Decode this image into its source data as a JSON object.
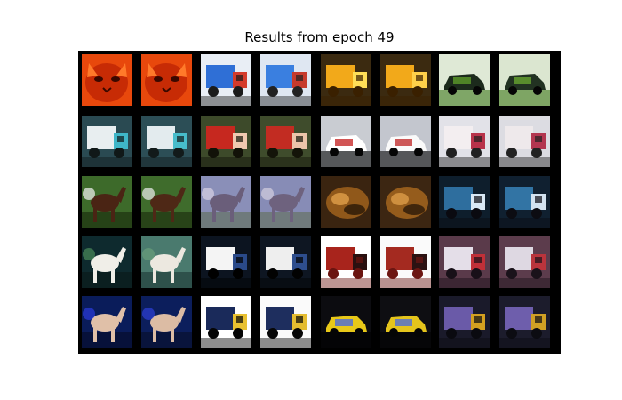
{
  "figure": {
    "title": "Results from epoch 49"
  },
  "grid": {
    "rows": 5,
    "cols": 8,
    "cells": [
      [
        {
          "subject": "cat-face",
          "variant": "original",
          "palette": {
            "bg": "#e8480c",
            "main": "#c72b05",
            "accent": "#ff7a2a",
            "low": "#3a0800"
          }
        },
        {
          "subject": "cat-face",
          "variant": "reconstruction",
          "palette": {
            "bg": "#e8480c",
            "main": "#c72b05",
            "accent": "#ff7a2a",
            "low": "#3a0800"
          }
        },
        {
          "subject": "truck-blue",
          "variant": "original",
          "palette": {
            "bg": "#e9eef5",
            "main": "#2f6fd6",
            "accent": "#d43b2b",
            "low": "#1b1b1b"
          }
        },
        {
          "subject": "truck-blue",
          "variant": "reconstruction",
          "palette": {
            "bg": "#dfe7f2",
            "main": "#3a7fe0",
            "accent": "#c63a2c",
            "low": "#222222"
          }
        },
        {
          "subject": "truck-yellow",
          "variant": "original",
          "palette": {
            "bg": "#3b2a10",
            "main": "#f2a91a",
            "accent": "#ffde57",
            "low": "#3a2000"
          }
        },
        {
          "subject": "truck-yellow",
          "variant": "reconstruction",
          "palette": {
            "bg": "#3b2a10",
            "main": "#f2a91a",
            "accent": "#ffd04a",
            "low": "#3a2000"
          }
        },
        {
          "subject": "car-dark-field",
          "variant": "original",
          "palette": {
            "bg": "#dfe9d6",
            "main": "#1c2a1c",
            "accent": "#5d9a2a",
            "low": "#3f7a1c"
          }
        },
        {
          "subject": "car-dark-field",
          "variant": "reconstruction",
          "palette": {
            "bg": "#dbe6d0",
            "main": "#223222",
            "accent": "#68a431",
            "low": "#3f7a1c"
          }
        }
      ],
      [
        {
          "subject": "truck-white",
          "variant": "original",
          "palette": {
            "bg": "#2a4a52",
            "main": "#e8eef0",
            "accent": "#3fb6c8",
            "low": "#101818"
          }
        },
        {
          "subject": "truck-white",
          "variant": "reconstruction",
          "palette": {
            "bg": "#2c4e56",
            "main": "#e3ebee",
            "accent": "#47bccb",
            "low": "#121a1a"
          }
        },
        {
          "subject": "truck-red",
          "variant": "original",
          "palette": {
            "bg": "#3d4a2a",
            "main": "#c6281f",
            "accent": "#f0c8b0",
            "low": "#121208"
          }
        },
        {
          "subject": "truck-red",
          "variant": "reconstruction",
          "palette": {
            "bg": "#3f4c2c",
            "main": "#c22c22",
            "accent": "#ecc4aa",
            "low": "#141409"
          }
        },
        {
          "subject": "car-white",
          "variant": "original",
          "palette": {
            "bg": "#c9ccd2",
            "main": "#ffffff",
            "accent": "#c72a2a",
            "low": "#0a0a0a"
          }
        },
        {
          "subject": "car-white",
          "variant": "reconstruction",
          "palette": {
            "bg": "#c3c6ce",
            "main": "#fafafa",
            "accent": "#c23030",
            "low": "#0c0c0c"
          }
        },
        {
          "subject": "truck-box-white",
          "variant": "original",
          "palette": {
            "bg": "#e2e2e8",
            "main": "#f3eef0",
            "accent": "#b8324a",
            "low": "#202020"
          }
        },
        {
          "subject": "truck-box-white",
          "variant": "reconstruction",
          "palette": {
            "bg": "#dcdce2",
            "main": "#eee9eb",
            "accent": "#b33650",
            "low": "#222222"
          }
        }
      ],
      [
        {
          "subject": "horse-brown",
          "variant": "original",
          "palette": {
            "bg": "#3d6a2a",
            "main": "#4a2414",
            "accent": "#f2f2f2",
            "low": "#142008"
          }
        },
        {
          "subject": "horse-brown",
          "variant": "reconstruction",
          "palette": {
            "bg": "#3f6c2c",
            "main": "#4e2816",
            "accent": "#eeeeee",
            "low": "#16220a"
          }
        },
        {
          "subject": "deer-field",
          "variant": "original",
          "palette": {
            "bg": "#8a8fb8",
            "main": "#6a5e7a",
            "accent": "#d8d2e4",
            "low": "#5a6a4a"
          }
        },
        {
          "subject": "deer-field",
          "variant": "reconstruction",
          "palette": {
            "bg": "#878cb6",
            "main": "#6e627e",
            "accent": "#d4cee0",
            "low": "#5c6c4c"
          }
        },
        {
          "subject": "blurry-brown",
          "variant": "original",
          "palette": {
            "bg": "#3a2410",
            "main": "#a0621c",
            "accent": "#e0a04a",
            "low": "#1a0e04"
          }
        },
        {
          "subject": "blurry-brown",
          "variant": "reconstruction",
          "palette": {
            "bg": "#3c2612",
            "main": "#a4661e",
            "accent": "#dc9c48",
            "low": "#1c1006"
          }
        },
        {
          "subject": "truck-dark-blue",
          "variant": "original",
          "palette": {
            "bg": "#0e1e2c",
            "main": "#2e6e9e",
            "accent": "#d8e8f4",
            "low": "#0a0a10"
          }
        },
        {
          "subject": "truck-dark-blue",
          "variant": "reconstruction",
          "palette": {
            "bg": "#102030",
            "main": "#3274a4",
            "accent": "#d2e2f0",
            "low": "#0c0c12"
          }
        }
      ],
      [
        {
          "subject": "horse-white",
          "variant": "original",
          "palette": {
            "bg": "#0e2a2e",
            "main": "#f0eee8",
            "accent": "#4a8a5a",
            "low": "#0a1616"
          }
        },
        {
          "subject": "horse-white",
          "variant": "reconstruction",
          "palette": {
            "bg": "#4a7a6e",
            "main": "#ece8e0",
            "accent": "#6aa07a",
            "low": "#183030"
          }
        },
        {
          "subject": "truck-box-small",
          "variant": "original",
          "palette": {
            "bg": "#0c1420",
            "main": "#f4f4f4",
            "accent": "#2a4a8a",
            "low": "#000000"
          }
        },
        {
          "subject": "truck-box-small",
          "variant": "reconstruction",
          "palette": {
            "bg": "#0e1622",
            "main": "#eeeeee",
            "accent": "#2e4e8e",
            "low": "#020202"
          }
        },
        {
          "subject": "fire-truck",
          "variant": "original",
          "palette": {
            "bg": "#ffffff",
            "main": "#a8241c",
            "accent": "#2a1010",
            "low": "#6a1410"
          }
        },
        {
          "subject": "fire-truck",
          "variant": "reconstruction",
          "palette": {
            "bg": "#fafafa",
            "main": "#a42a20",
            "accent": "#2c1212",
            "low": "#6c1612"
          }
        },
        {
          "subject": "truck-silver",
          "variant": "original",
          "palette": {
            "bg": "#5a3a4a",
            "main": "#e4dee8",
            "accent": "#c03038",
            "low": "#181018"
          }
        },
        {
          "subject": "truck-silver",
          "variant": "reconstruction",
          "palette": {
            "bg": "#5c3c4c",
            "main": "#ded8e2",
            "accent": "#ba343c",
            "low": "#1a121a"
          }
        }
      ],
      [
        {
          "subject": "dog-blue-bg",
          "variant": "original",
          "palette": {
            "bg": "#0a1c5a",
            "main": "#e0c0a8",
            "accent": "#2a3adc",
            "low": "#060a20"
          }
        },
        {
          "subject": "dog-blue-bg",
          "variant": "reconstruction",
          "palette": {
            "bg": "#0c1e5c",
            "main": "#dcbca4",
            "accent": "#2e3ed8",
            "low": "#080c22"
          }
        },
        {
          "subject": "truck-blue-white",
          "variant": "original",
          "palette": {
            "bg": "#ffffff",
            "main": "#1a2a5a",
            "accent": "#e8c030",
            "low": "#050505"
          }
        },
        {
          "subject": "truck-blue-white",
          "variant": "reconstruction",
          "palette": {
            "bg": "#fafafa",
            "main": "#1e2e5e",
            "accent": "#e4bc30",
            "low": "#070707"
          }
        },
        {
          "subject": "car-yellow",
          "variant": "original",
          "palette": {
            "bg": "#0c0c10",
            "main": "#e8c818",
            "accent": "#4a6adc",
            "low": "#000000"
          }
        },
        {
          "subject": "car-yellow",
          "variant": "reconstruction",
          "palette": {
            "bg": "#0e0e12",
            "main": "#e4c41c",
            "accent": "#4e6ed8",
            "low": "#020202"
          }
        },
        {
          "subject": "truck-purple",
          "variant": "original",
          "palette": {
            "bg": "#1a1a2a",
            "main": "#6a5aa8",
            "accent": "#d4a020",
            "low": "#0a0a10"
          }
        },
        {
          "subject": "truck-purple",
          "variant": "reconstruction",
          "palette": {
            "bg": "#1c1c2c",
            "main": "#6e5eac",
            "accent": "#d0a024",
            "low": "#0c0c12"
          }
        }
      ]
    ]
  }
}
